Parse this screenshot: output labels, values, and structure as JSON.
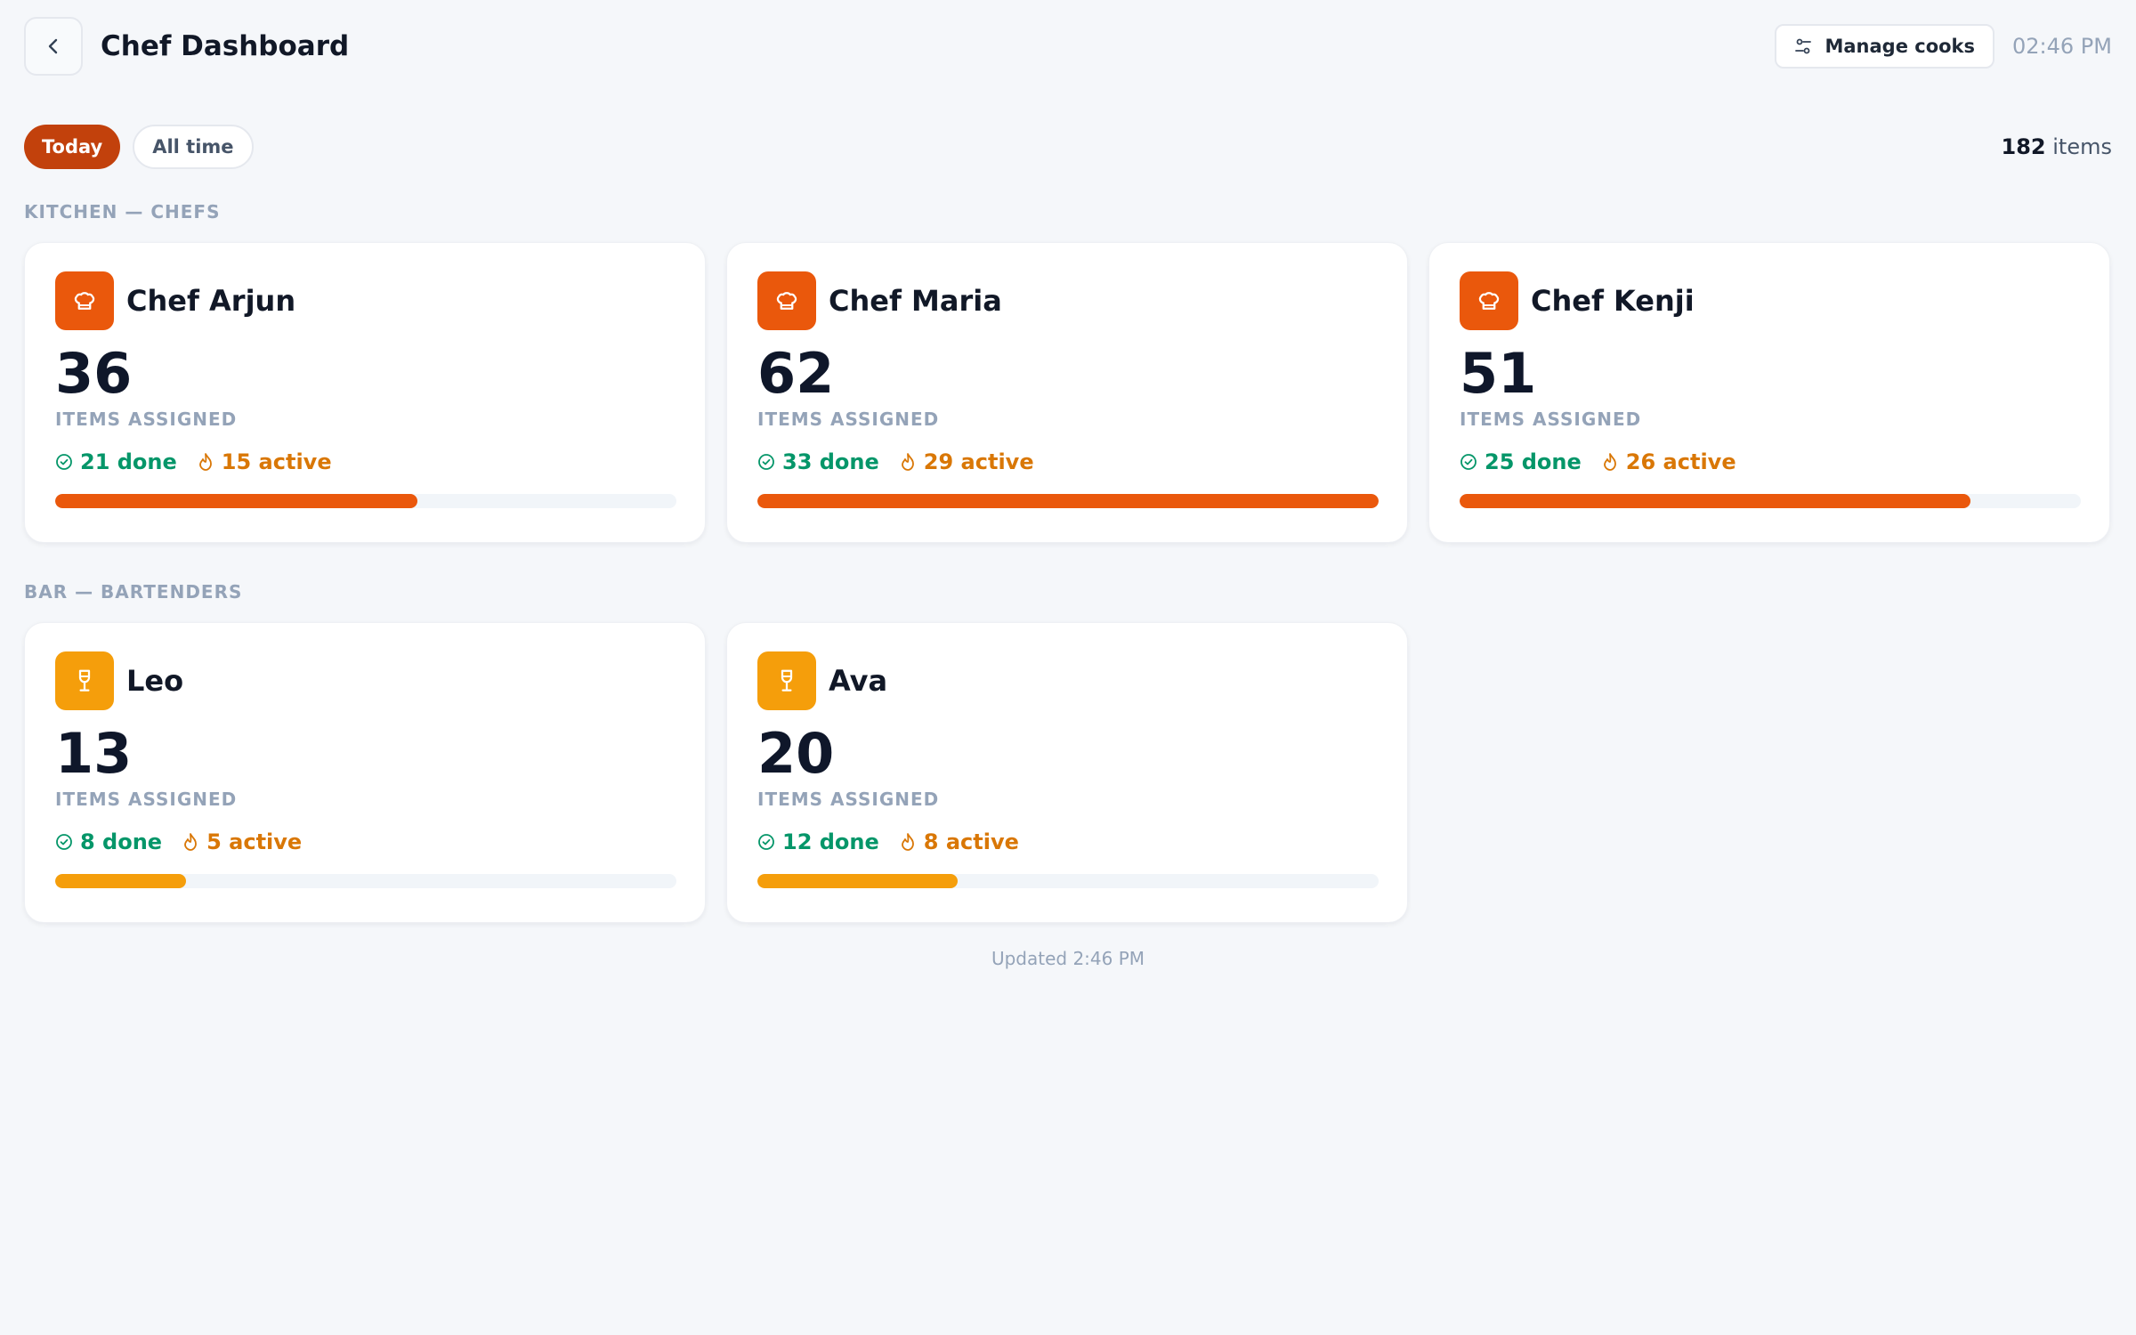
{
  "header": {
    "title": "Chef Dashboard",
    "manage_label": "Manage cooks",
    "clock": "02:46 PM"
  },
  "filters": {
    "today_label": "Today",
    "alltime_label": "All time",
    "total_count": "182",
    "total_suffix": "items"
  },
  "sections": {
    "kitchen_label": "KITCHEN — CHEFS",
    "bar_label": "BAR — BARTENDERS"
  },
  "cooks": [
    {
      "name": "Chef Arjun",
      "count": "36",
      "count_label": "ITEMS ASSIGNED",
      "done": "21 done",
      "active": "15 active",
      "progress": 0.583,
      "icon": "chef-hat-icon"
    },
    {
      "name": "Chef Maria",
      "count": "62",
      "count_label": "ITEMS ASSIGNED",
      "done": "33 done",
      "active": "29 active",
      "progress": 1.0,
      "icon": "chef-hat-icon"
    },
    {
      "name": "Chef Kenji",
      "count": "51",
      "count_label": "ITEMS ASSIGNED",
      "done": "25 done",
      "active": "26 active",
      "progress": 0.823,
      "icon": "chef-hat-icon"
    },
    {
      "name": "Leo",
      "count": "13",
      "count_label": "ITEMS ASSIGNED",
      "done": "8 done",
      "active": "5 active",
      "progress": 0.21,
      "icon": "wine-glass-icon"
    },
    {
      "name": "Ava",
      "count": "20",
      "count_label": "ITEMS ASSIGNED",
      "done": "12 done",
      "active": "8 active",
      "progress": 0.323,
      "icon": "wine-glass-icon"
    }
  ],
  "colors": {
    "chef_accent": "#ea580c",
    "bar_accent": "#f59e0b",
    "done": "#059669",
    "active": "#d97706"
  },
  "footer": {
    "updated": "Updated 2:46 PM"
  }
}
